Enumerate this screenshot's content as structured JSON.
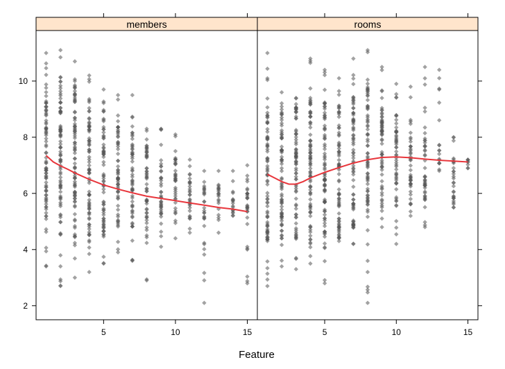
{
  "chart_data": {
    "type": "scatter",
    "xlabel": "Feature",
    "ylabel": "",
    "xlim": [
      0.3,
      15.7
    ],
    "ylim": [
      1.5,
      11.8
    ],
    "x_ticks": [
      5,
      10,
      15
    ],
    "y_ticks": [
      2,
      4,
      6,
      8,
      10
    ],
    "x_tick_labels": [
      "5",
      "10",
      "15"
    ],
    "y_tick_labels": [
      "2",
      "4",
      "6",
      "8",
      "10"
    ],
    "grid": false,
    "point_color": "#555555",
    "smooth_color": "#e8353b",
    "strip_color": "#ffe5cc",
    "panels": [
      {
        "name": "members",
        "ranges": [
          {
            "x": 1,
            "ymin": 3.4,
            "ymax": 11.0,
            "dense_min": 4.6,
            "dense_max": 9.9
          },
          {
            "x": 2,
            "ymin": 2.7,
            "ymax": 11.1,
            "dense_min": 4.5,
            "dense_max": 10.0
          },
          {
            "x": 3,
            "ymin": 3.0,
            "ymax": 10.7,
            "dense_min": 4.3,
            "dense_max": 9.9
          },
          {
            "x": 4,
            "ymin": 3.2,
            "ymax": 10.2,
            "dense_min": 4.3,
            "dense_max": 9.4
          },
          {
            "x": 5,
            "ymin": 3.5,
            "ymax": 9.7,
            "dense_min": 4.4,
            "dense_max": 9.0
          },
          {
            "x": 6,
            "ymin": 3.9,
            "ymax": 9.5,
            "dense_min": 4.7,
            "dense_max": 8.5
          },
          {
            "x": 7,
            "ymin": 3.6,
            "ymax": 9.5,
            "dense_min": 4.8,
            "dense_max": 8.3
          },
          {
            "x": 8,
            "ymin": 2.9,
            "ymax": 8.3,
            "dense_min": 4.7,
            "dense_max": 8.0
          },
          {
            "x": 9,
            "ymin": 4.1,
            "ymax": 8.3,
            "dense_min": 4.9,
            "dense_max": 7.2
          },
          {
            "x": 10,
            "ymin": 4.4,
            "ymax": 8.1,
            "dense_min": 5.0,
            "dense_max": 7.3
          },
          {
            "x": 11,
            "ymin": 4.6,
            "ymax": 7.2,
            "dense_min": 5.0,
            "dense_max": 6.8
          },
          {
            "x": 12,
            "ymin": 2.1,
            "ymax": 6.8,
            "dense_min": 5.0,
            "dense_max": 6.3
          },
          {
            "x": 13,
            "ymin": 4.6,
            "ymax": 6.8,
            "dense_min": 5.2,
            "dense_max": 6.3
          },
          {
            "x": 14,
            "ymin": 5.2,
            "ymax": 6.8,
            "dense_min": 5.3,
            "dense_max": 6.2
          },
          {
            "x": 15,
            "ymin": 2.8,
            "ymax": 7.0,
            "dense_min": 5.1,
            "dense_max": 6.6
          }
        ],
        "smooth": {
          "x": [
            1,
            1.5,
            2,
            2.5,
            3,
            4,
            5,
            6,
            7,
            8,
            9,
            10,
            11,
            12,
            13,
            14,
            15
          ],
          "y": [
            7.35,
            7.12,
            6.98,
            6.86,
            6.73,
            6.5,
            6.3,
            6.15,
            6.02,
            5.9,
            5.82,
            5.74,
            5.66,
            5.58,
            5.5,
            5.44,
            5.35
          ]
        }
      },
      {
        "name": "rooms",
        "ranges": [
          {
            "x": 1,
            "ymin": 2.7,
            "ymax": 11.0,
            "dense_min": 4.3,
            "dense_max": 9.3
          },
          {
            "x": 2,
            "ymin": 3.4,
            "ymax": 9.6,
            "dense_min": 4.3,
            "dense_max": 9.2
          },
          {
            "x": 3,
            "ymin": 3.3,
            "ymax": 9.4,
            "dense_min": 4.2,
            "dense_max": 9.2
          },
          {
            "x": 4,
            "ymin": 3.5,
            "ymax": 10.8,
            "dense_min": 4.2,
            "dense_max": 9.7
          },
          {
            "x": 5,
            "ymin": 2.8,
            "ymax": 10.4,
            "dense_min": 4.2,
            "dense_max": 9.4
          },
          {
            "x": 6,
            "ymin": 4.3,
            "ymax": 10.1,
            "dense_min": 4.4,
            "dense_max": 9.3
          },
          {
            "x": 7,
            "ymin": 4.2,
            "ymax": 10.8,
            "dense_min": 4.7,
            "dense_max": 9.7
          },
          {
            "x": 8,
            "ymin": 2.1,
            "ymax": 11.1,
            "dense_min": 5.2,
            "dense_max": 9.8
          },
          {
            "x": 9,
            "ymin": 4.8,
            "ymax": 10.5,
            "dense_min": 5.5,
            "dense_max": 9.4
          },
          {
            "x": 10,
            "ymin": 4.2,
            "ymax": 9.9,
            "dense_min": 5.5,
            "dense_max": 8.8
          },
          {
            "x": 11,
            "ymin": 5.2,
            "ymax": 9.8,
            "dense_min": 5.6,
            "dense_max": 8.2
          },
          {
            "x": 12,
            "ymin": 4.8,
            "ymax": 10.5,
            "dense_min": 5.5,
            "dense_max": 8.0
          },
          {
            "x": 13,
            "ymin": 6.8,
            "ymax": 10.4,
            "dense_min": 7.0,
            "dense_max": 7.6
          },
          {
            "x": 14,
            "ymin": 5.5,
            "ymax": 8.0,
            "dense_min": 5.6,
            "dense_max": 7.3
          },
          {
            "x": 15,
            "ymin": 6.9,
            "ymax": 7.2,
            "dense_min": 6.9,
            "dense_max": 7.2
          }
        ],
        "smooth": {
          "x": [
            1,
            1.5,
            2,
            2.5,
            3,
            3.5,
            4,
            5,
            6,
            7,
            8,
            9,
            10,
            11,
            12,
            13,
            14,
            15
          ],
          "y": [
            6.68,
            6.55,
            6.42,
            6.33,
            6.33,
            6.42,
            6.55,
            6.75,
            6.92,
            7.08,
            7.2,
            7.28,
            7.3,
            7.27,
            7.22,
            7.18,
            7.15,
            7.12
          ]
        }
      }
    ]
  }
}
